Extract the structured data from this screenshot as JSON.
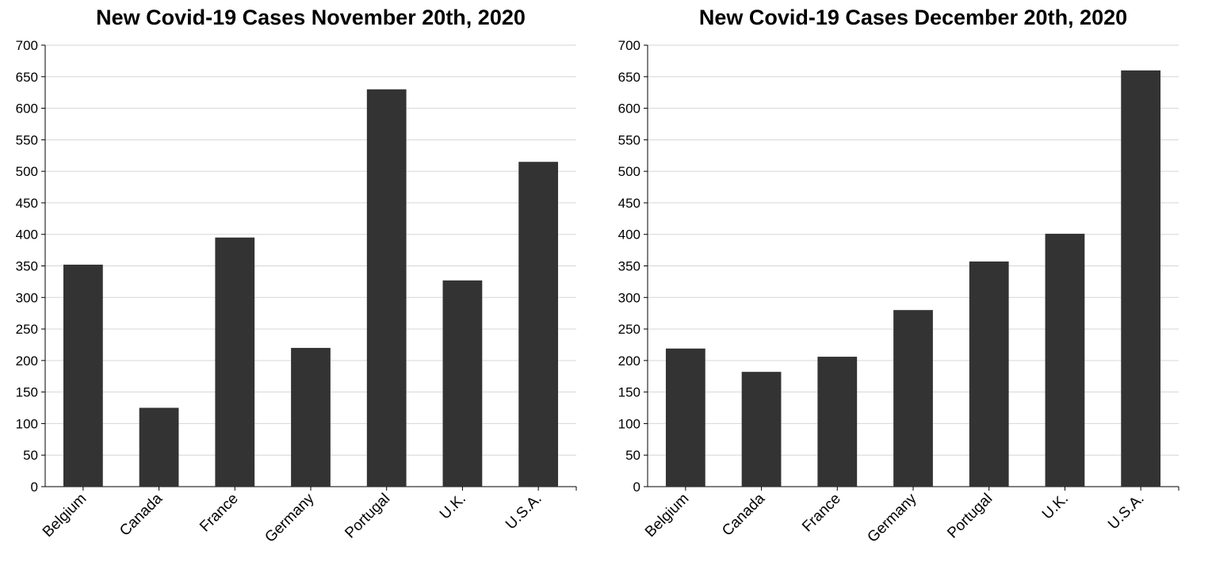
{
  "colors": {
    "bar": "#333333",
    "grid": "#d6d6d6",
    "axis": "#000000",
    "background": "#ffffff"
  },
  "chart_data": [
    {
      "type": "bar",
      "title": "New Covid-19 Cases November 20th, 2020",
      "xlabel": "",
      "ylabel": "",
      "ylim": [
        0,
        700
      ],
      "yticks": [
        0,
        50,
        100,
        150,
        200,
        250,
        300,
        350,
        400,
        450,
        500,
        550,
        600,
        650,
        700
      ],
      "grid": true,
      "categories": [
        "Belgium",
        "Canada",
        "France",
        "Germany",
        "Portugal",
        "U.K.",
        "U.S.A."
      ],
      "values": [
        352,
        125,
        395,
        220,
        630,
        327,
        515
      ]
    },
    {
      "type": "bar",
      "title": "New Covid-19 Cases December 20th, 2020",
      "xlabel": "",
      "ylabel": "",
      "ylim": [
        0,
        700
      ],
      "yticks": [
        0,
        50,
        100,
        150,
        200,
        250,
        300,
        350,
        400,
        450,
        500,
        550,
        600,
        650,
        700
      ],
      "grid": true,
      "categories": [
        "Belgium",
        "Canada",
        "France",
        "Germany",
        "Portugal",
        "U.K.",
        "U.S.A."
      ],
      "values": [
        219,
        182,
        206,
        280,
        357,
        401,
        660
      ]
    }
  ]
}
